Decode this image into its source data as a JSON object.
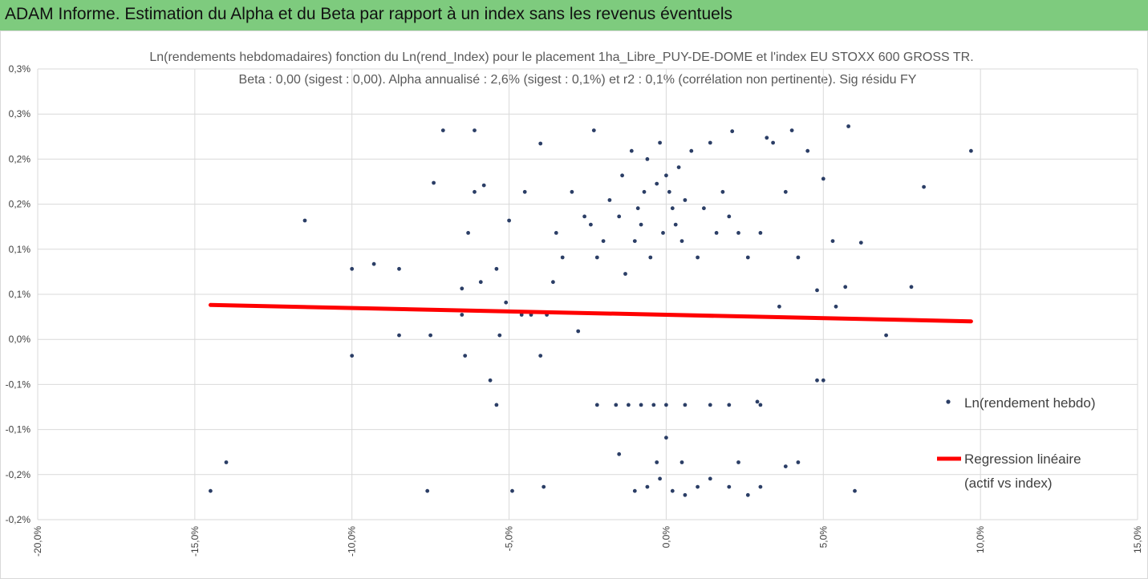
{
  "header": {
    "title": "ADAM Informe. Estimation du Alpha et du Beta par rapport à un index sans les revenus éventuels"
  },
  "colors": {
    "banner": "#7ecb7e",
    "points": "#2b3e66",
    "regression": "#ff0000",
    "accent": "#f2b800"
  },
  "chart_data": {
    "type": "scatter",
    "title_line1": "Ln(rendements hebdomadaires) fonction du Ln(rend_Index) pour le placement 1ha_Libre_PUY-DE-DOME et l'index EU STOXX 600 GROSS TR.",
    "title_line2": "Beta : 0,00 (sigest : 0,00). Alpha annualisé : 2,6% (sigest : 0,1%) et r2 : 0,1% (corrélation non pertinente). Sig résidu FY",
    "x_ticks": [
      "-20,0%",
      "-15,0%",
      "-10,0%",
      "-5,0%",
      "0,0%",
      "5,0%",
      "10,0%",
      "15,0%"
    ],
    "y_ticks": [
      "0,3%",
      "0,3%",
      "0,2%",
      "0,2%",
      "0,1%",
      "0,1%",
      "0,0%",
      "-0,1%",
      "-0,1%",
      "-0,2%",
      "-0,2%"
    ],
    "xlim": [
      -20,
      15
    ],
    "ylim": [
      -0.2,
      0.35
    ],
    "grid": true,
    "legend_position": "right",
    "series": [
      {
        "name": "Ln(rendement hebdo)",
        "kind": "scatter",
        "points": [
          [
            -14.5,
            -0.165
          ],
          [
            -14.0,
            -0.13
          ],
          [
            -11.5,
            0.165
          ],
          [
            -10.0,
            0.0
          ],
          [
            -10.0,
            0.106
          ],
          [
            -9.3,
            0.112
          ],
          [
            -8.5,
            0.025
          ],
          [
            -8.5,
            0.106
          ],
          [
            -7.5,
            0.025
          ],
          [
            -7.4,
            0.211
          ],
          [
            -7.1,
            0.275
          ],
          [
            -7.6,
            -0.165
          ],
          [
            -6.5,
            0.05
          ],
          [
            -6.4,
            0.0
          ],
          [
            -6.5,
            0.082
          ],
          [
            -6.3,
            0.15
          ],
          [
            -6.1,
            0.275
          ],
          [
            -6.1,
            0.2
          ],
          [
            -5.9,
            0.09
          ],
          [
            -5.8,
            0.208
          ],
          [
            -5.6,
            -0.03
          ],
          [
            -5.4,
            -0.06
          ],
          [
            -5.4,
            0.106
          ],
          [
            -5.3,
            0.025
          ],
          [
            -5.1,
            0.065
          ],
          [
            -5.0,
            0.165
          ],
          [
            -4.9,
            -0.165
          ],
          [
            -4.6,
            0.05
          ],
          [
            -4.5,
            0.2
          ],
          [
            -4.3,
            0.05
          ],
          [
            -4.0,
            0.0
          ],
          [
            -4.0,
            0.259
          ],
          [
            -3.9,
            -0.16
          ],
          [
            -3.8,
            0.05
          ],
          [
            -3.6,
            0.09
          ],
          [
            -3.5,
            0.15
          ],
          [
            -3.3,
            0.12
          ],
          [
            -3.0,
            0.2
          ],
          [
            -2.8,
            0.03
          ],
          [
            -2.6,
            0.17
          ],
          [
            -2.4,
            0.16
          ],
          [
            -2.3,
            0.275
          ],
          [
            -2.2,
            0.12
          ],
          [
            -2.0,
            0.14
          ],
          [
            -1.8,
            0.19
          ],
          [
            -1.5,
            0.17
          ],
          [
            -1.4,
            0.22
          ],
          [
            -1.3,
            0.1
          ],
          [
            -1.1,
            0.25
          ],
          [
            -1.0,
            0.14
          ],
          [
            -0.9,
            0.18
          ],
          [
            -0.8,
            0.16
          ],
          [
            -0.7,
            0.2
          ],
          [
            -0.6,
            0.24
          ],
          [
            -0.5,
            0.12
          ],
          [
            -0.3,
            0.21
          ],
          [
            -0.2,
            0.26
          ],
          [
            -0.1,
            0.15
          ],
          [
            0.0,
            0.22
          ],
          [
            0.1,
            0.2
          ],
          [
            0.2,
            0.18
          ],
          [
            0.3,
            0.16
          ],
          [
            0.4,
            0.23
          ],
          [
            0.5,
            0.14
          ],
          [
            0.6,
            0.19
          ],
          [
            0.8,
            0.25
          ],
          [
            1.0,
            0.12
          ],
          [
            1.2,
            0.18
          ],
          [
            1.4,
            0.26
          ],
          [
            1.6,
            0.15
          ],
          [
            1.8,
            0.2
          ],
          [
            2.0,
            0.17
          ],
          [
            2.1,
            0.274
          ],
          [
            2.3,
            0.15
          ],
          [
            2.6,
            0.12
          ],
          [
            3.0,
            0.15
          ],
          [
            3.2,
            0.266
          ],
          [
            3.4,
            0.26
          ],
          [
            3.6,
            0.06
          ],
          [
            3.8,
            0.2
          ],
          [
            4.0,
            0.275
          ],
          [
            4.2,
            0.12
          ],
          [
            4.5,
            0.25
          ],
          [
            4.8,
            0.08
          ],
          [
            5.0,
            0.216
          ],
          [
            5.3,
            0.14
          ],
          [
            5.4,
            0.06
          ],
          [
            5.7,
            0.084
          ],
          [
            5.8,
            0.28
          ],
          [
            6.2,
            0.138
          ],
          [
            7.0,
            0.025
          ],
          [
            7.8,
            0.084
          ],
          [
            8.2,
            0.206
          ],
          [
            9.7,
            0.25
          ],
          [
            -1.0,
            -0.165
          ],
          [
            -0.6,
            -0.16
          ],
          [
            -0.2,
            -0.15
          ],
          [
            0.2,
            -0.165
          ],
          [
            0.6,
            -0.17
          ],
          [
            1.0,
            -0.16
          ],
          [
            1.4,
            -0.15
          ],
          [
            2.0,
            -0.16
          ],
          [
            2.6,
            -0.17
          ],
          [
            3.0,
            -0.16
          ],
          [
            0.0,
            -0.1
          ],
          [
            -0.3,
            -0.13
          ],
          [
            0.5,
            -0.13
          ],
          [
            2.3,
            -0.13
          ],
          [
            3.8,
            -0.135
          ],
          [
            4.2,
            -0.13
          ],
          [
            6.0,
            -0.165
          ],
          [
            -1.5,
            -0.12
          ],
          [
            -2.2,
            -0.06
          ],
          [
            -1.6,
            -0.06
          ],
          [
            -1.2,
            -0.06
          ],
          [
            -0.8,
            -0.06
          ],
          [
            -0.4,
            -0.06
          ],
          [
            0.0,
            -0.06
          ],
          [
            0.6,
            -0.06
          ],
          [
            1.4,
            -0.06
          ],
          [
            2.0,
            -0.06
          ],
          [
            3.0,
            -0.06
          ],
          [
            4.8,
            -0.03
          ],
          [
            5.0,
            -0.03
          ],
          [
            2.9,
            -0.056
          ]
        ]
      },
      {
        "name": "Regression linéaire (actif vs index)",
        "kind": "line",
        "x": [
          -14.5,
          9.7
        ],
        "y": [
          0.062,
          0.042
        ]
      }
    ]
  },
  "legend": {
    "series1": "Ln(rendement hebdo)",
    "series2_line1": "Regression linéaire",
    "series2_line2": "(actif vs index)"
  }
}
